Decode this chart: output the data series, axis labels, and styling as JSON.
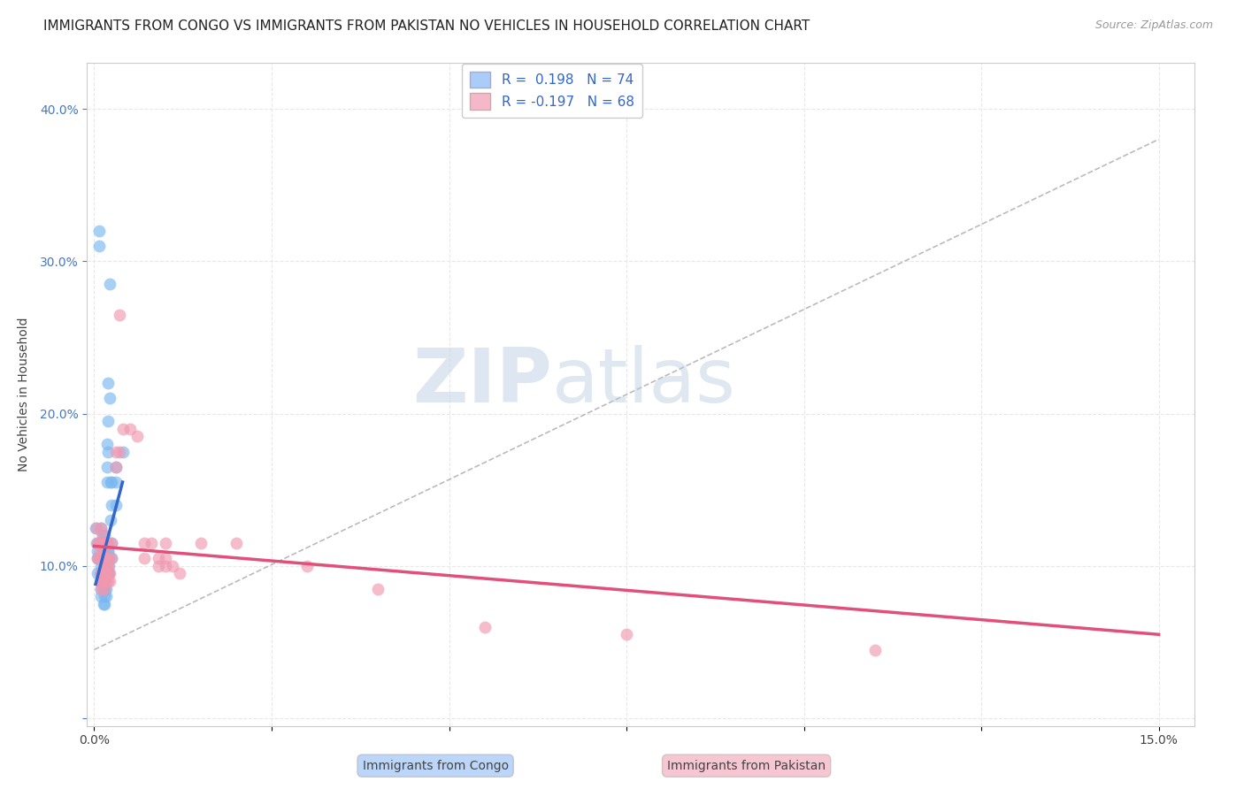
{
  "title": "IMMIGRANTS FROM CONGO VS IMMIGRANTS FROM PAKISTAN NO VEHICLES IN HOUSEHOLD CORRELATION CHART",
  "source": "Source: ZipAtlas.com",
  "xlabel": "",
  "ylabel": "No Vehicles in Household",
  "xlim": [
    -0.001,
    0.155
  ],
  "ylim": [
    -0.005,
    0.43
  ],
  "congo_color": "#7ab8f0",
  "pakistan_color": "#f098b0",
  "congo_line_color": "#3366cc",
  "pakistan_line_color": "#e0507a",
  "watermark_zip": "ZIP",
  "watermark_atlas": "atlas",
  "legend_label_congo": "R =  0.198   N = 74",
  "legend_label_pak": "R = -0.197   N = 68",
  "legend_color_congo": "#aaccf8",
  "legend_color_pak": "#f5b8c8",
  "congo_scatter": [
    [
      0.0002,
      0.125
    ],
    [
      0.0003,
      0.115
    ],
    [
      0.0004,
      0.105
    ],
    [
      0.0005,
      0.095
    ],
    [
      0.0005,
      0.11
    ],
    [
      0.0006,
      0.105
    ],
    [
      0.0007,
      0.32
    ],
    [
      0.0007,
      0.31
    ],
    [
      0.0008,
      0.115
    ],
    [
      0.0008,
      0.105
    ],
    [
      0.0009,
      0.095
    ],
    [
      0.0009,
      0.1
    ],
    [
      0.001,
      0.125
    ],
    [
      0.001,
      0.115
    ],
    [
      0.001,
      0.105
    ],
    [
      0.001,
      0.095
    ],
    [
      0.001,
      0.09
    ],
    [
      0.001,
      0.085
    ],
    [
      0.001,
      0.08
    ],
    [
      0.0012,
      0.12
    ],
    [
      0.0012,
      0.115
    ],
    [
      0.0012,
      0.11
    ],
    [
      0.0013,
      0.105
    ],
    [
      0.0013,
      0.1
    ],
    [
      0.0013,
      0.095
    ],
    [
      0.0013,
      0.09
    ],
    [
      0.0013,
      0.085
    ],
    [
      0.0013,
      0.075
    ],
    [
      0.0014,
      0.115
    ],
    [
      0.0014,
      0.105
    ],
    [
      0.0014,
      0.1
    ],
    [
      0.0014,
      0.095
    ],
    [
      0.0014,
      0.085
    ],
    [
      0.0014,
      0.075
    ],
    [
      0.0015,
      0.12
    ],
    [
      0.0015,
      0.115
    ],
    [
      0.0015,
      0.11
    ],
    [
      0.0015,
      0.105
    ],
    [
      0.0015,
      0.1
    ],
    [
      0.0015,
      0.095
    ],
    [
      0.0015,
      0.09
    ],
    [
      0.0015,
      0.085
    ],
    [
      0.0015,
      0.08
    ],
    [
      0.0016,
      0.115
    ],
    [
      0.0016,
      0.105
    ],
    [
      0.0016,
      0.1
    ],
    [
      0.0016,
      0.095
    ],
    [
      0.0017,
      0.085
    ],
    [
      0.0017,
      0.08
    ],
    [
      0.0018,
      0.18
    ],
    [
      0.0018,
      0.165
    ],
    [
      0.0018,
      0.155
    ],
    [
      0.0019,
      0.11
    ],
    [
      0.0019,
      0.105
    ],
    [
      0.0019,
      0.095
    ],
    [
      0.002,
      0.22
    ],
    [
      0.002,
      0.195
    ],
    [
      0.002,
      0.175
    ],
    [
      0.002,
      0.11
    ],
    [
      0.0021,
      0.105
    ],
    [
      0.0021,
      0.1
    ],
    [
      0.0021,
      0.095
    ],
    [
      0.0022,
      0.285
    ],
    [
      0.0022,
      0.21
    ],
    [
      0.0023,
      0.155
    ],
    [
      0.0023,
      0.13
    ],
    [
      0.0024,
      0.115
    ],
    [
      0.0024,
      0.105
    ],
    [
      0.0025,
      0.155
    ],
    [
      0.0025,
      0.14
    ],
    [
      0.003,
      0.165
    ],
    [
      0.003,
      0.155
    ],
    [
      0.003,
      0.14
    ],
    [
      0.004,
      0.175
    ]
  ],
  "pakistan_scatter": [
    [
      0.0003,
      0.125
    ],
    [
      0.0004,
      0.115
    ],
    [
      0.0005,
      0.105
    ],
    [
      0.0006,
      0.115
    ],
    [
      0.0007,
      0.105
    ],
    [
      0.0008,
      0.11
    ],
    [
      0.0008,
      0.105
    ],
    [
      0.0009,
      0.095
    ],
    [
      0.0009,
      0.09
    ],
    [
      0.001,
      0.125
    ],
    [
      0.001,
      0.115
    ],
    [
      0.001,
      0.105
    ],
    [
      0.001,
      0.095
    ],
    [
      0.001,
      0.09
    ],
    [
      0.001,
      0.085
    ],
    [
      0.0012,
      0.12
    ],
    [
      0.0012,
      0.115
    ],
    [
      0.0013,
      0.11
    ],
    [
      0.0013,
      0.105
    ],
    [
      0.0013,
      0.1
    ],
    [
      0.0013,
      0.095
    ],
    [
      0.0014,
      0.115
    ],
    [
      0.0014,
      0.105
    ],
    [
      0.0014,
      0.1
    ],
    [
      0.0015,
      0.095
    ],
    [
      0.0015,
      0.09
    ],
    [
      0.0015,
      0.085
    ],
    [
      0.0016,
      0.115
    ],
    [
      0.0016,
      0.105
    ],
    [
      0.0016,
      0.1
    ],
    [
      0.0017,
      0.095
    ],
    [
      0.0017,
      0.09
    ],
    [
      0.0018,
      0.115
    ],
    [
      0.0018,
      0.105
    ],
    [
      0.0018,
      0.1
    ],
    [
      0.0019,
      0.095
    ],
    [
      0.0019,
      0.09
    ],
    [
      0.002,
      0.115
    ],
    [
      0.002,
      0.105
    ],
    [
      0.002,
      0.1
    ],
    [
      0.0022,
      0.095
    ],
    [
      0.0022,
      0.09
    ],
    [
      0.0025,
      0.115
    ],
    [
      0.0025,
      0.105
    ],
    [
      0.003,
      0.175
    ],
    [
      0.003,
      0.165
    ],
    [
      0.0035,
      0.175
    ],
    [
      0.0035,
      0.265
    ],
    [
      0.004,
      0.19
    ],
    [
      0.005,
      0.19
    ],
    [
      0.006,
      0.185
    ],
    [
      0.007,
      0.115
    ],
    [
      0.007,
      0.105
    ],
    [
      0.008,
      0.115
    ],
    [
      0.009,
      0.105
    ],
    [
      0.009,
      0.1
    ],
    [
      0.01,
      0.115
    ],
    [
      0.01,
      0.105
    ],
    [
      0.01,
      0.1
    ],
    [
      0.011,
      0.1
    ],
    [
      0.012,
      0.095
    ],
    [
      0.015,
      0.115
    ],
    [
      0.02,
      0.115
    ],
    [
      0.03,
      0.1
    ],
    [
      0.04,
      0.085
    ],
    [
      0.055,
      0.06
    ],
    [
      0.075,
      0.055
    ],
    [
      0.11,
      0.045
    ]
  ],
  "congo_trendline": [
    [
      0.0002,
      0.088
    ],
    [
      0.004,
      0.155
    ]
  ],
  "pakistan_trendline": [
    [
      0.0,
      0.113
    ],
    [
      0.15,
      0.055
    ]
  ],
  "dashed_line": [
    [
      0.0,
      0.045
    ],
    [
      0.15,
      0.38
    ]
  ],
  "background_color": "#ffffff",
  "grid_color": "#e8e8e8",
  "title_fontsize": 11,
  "axis_label_fontsize": 10,
  "tick_fontsize": 10,
  "legend_fontsize": 11,
  "bottom_legend_congo": "Immigrants from Congo",
  "bottom_legend_pak": "Immigrants from Pakistan"
}
